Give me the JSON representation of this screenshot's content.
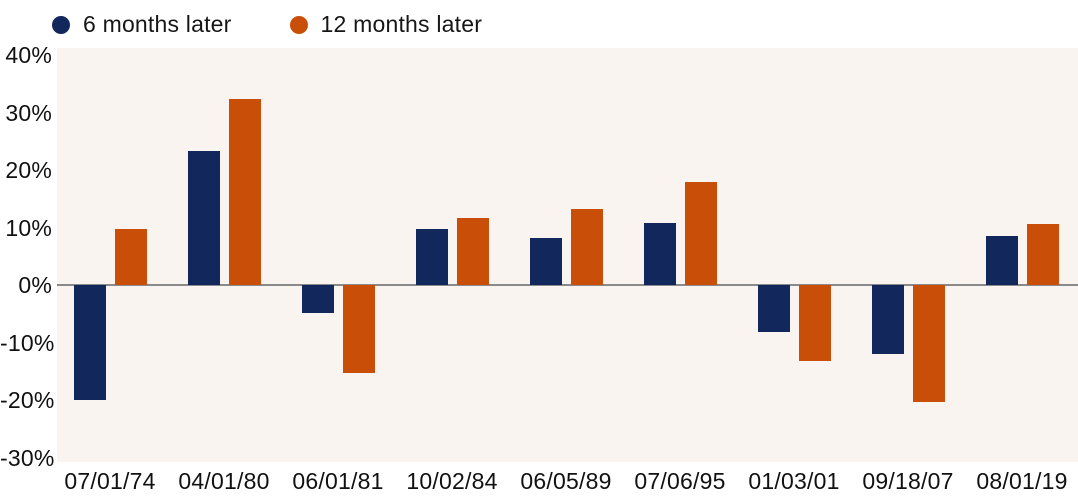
{
  "legend": {
    "items": [
      {
        "label": "6 months later",
        "color": "#12275c"
      },
      {
        "label": "12 months later",
        "color": "#c94e07"
      }
    ]
  },
  "chart_data": {
    "type": "bar",
    "title": "",
    "xlabel": "",
    "ylabel": "",
    "categories": [
      "07/01/74",
      "04/01/80",
      "06/01/81",
      "10/02/84",
      "06/05/89",
      "07/06/95",
      "01/03/01",
      "09/18/07",
      "08/01/19"
    ],
    "series": [
      {
        "name": "6 months later",
        "color": "#12275c",
        "values": [
          -20.0,
          23.3,
          -4.8,
          9.8,
          8.2,
          10.8,
          -8.2,
          -12.0,
          8.6
        ]
      },
      {
        "name": "12 months later",
        "color": "#c94e07",
        "values": [
          9.7,
          32.3,
          -15.3,
          11.7,
          13.3,
          18.0,
          -13.1,
          -20.2,
          10.7
        ]
      }
    ],
    "ylim": [
      -30,
      40
    ],
    "yticks": [
      40,
      30,
      20,
      10,
      0,
      -10,
      -20,
      -30
    ],
    "ytick_suffix": "%",
    "grid": false,
    "zero_line": true,
    "legend_position": "top-left",
    "colors": {
      "plot_background": "#faf4f1",
      "page_background": "#ffffff",
      "zero_line": "#8a8a8a",
      "text": "#111111"
    }
  }
}
